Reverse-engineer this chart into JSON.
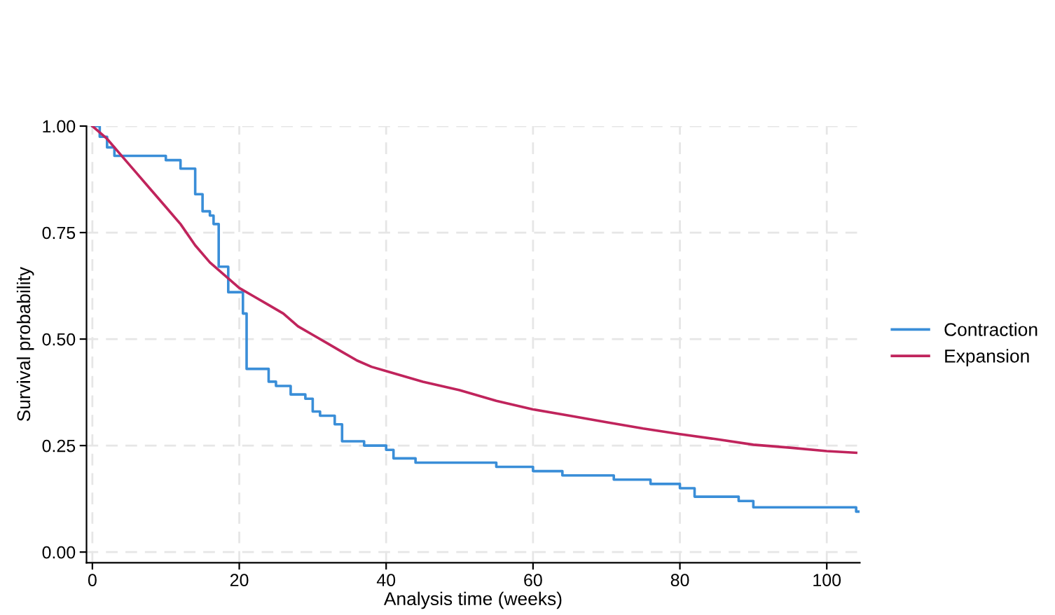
{
  "chart_data": {
    "type": "step",
    "xlabel": "Analysis time (weeks)",
    "ylabel": "Survival probability",
    "xlim": [
      -0.8,
      104.5
    ],
    "ylim": [
      -0.025,
      1.0
    ],
    "xticks": [
      0,
      20,
      40,
      60,
      80,
      100
    ],
    "yticks": [
      {
        "value": 0,
        "label": "0.00"
      },
      {
        "value": 0.25,
        "label": "0.25"
      },
      {
        "value": 0.5,
        "label": "0.50"
      },
      {
        "value": 0.75,
        "label": "0.75"
      },
      {
        "value": 1,
        "label": "1.00"
      }
    ],
    "grid": true,
    "legend": "right",
    "series": [
      {
        "name": "Contraction",
        "color": "#3a8ed8",
        "x": [
          0,
          1,
          2,
          3,
          5,
          10,
          12,
          14,
          15,
          16,
          16.5,
          17.2,
          18.5,
          20.5,
          21,
          24,
          25,
          27,
          29,
          30,
          31,
          33,
          34,
          37,
          40,
          41,
          44,
          55,
          60,
          64,
          71,
          76,
          80,
          82,
          88,
          90,
          104,
          104.3
        ],
        "values": [
          1.0,
          0.975,
          0.95,
          0.93,
          0.93,
          0.92,
          0.9,
          0.84,
          0.8,
          0.79,
          0.77,
          0.67,
          0.61,
          0.56,
          0.43,
          0.4,
          0.39,
          0.37,
          0.36,
          0.33,
          0.32,
          0.3,
          0.26,
          0.25,
          0.24,
          0.22,
          0.21,
          0.2,
          0.19,
          0.18,
          0.17,
          0.16,
          0.15,
          0.13,
          0.12,
          0.105,
          0.095,
          0.095
        ]
      },
      {
        "name": "Expansion",
        "color": "#c0245c",
        "type": "line",
        "x": [
          0,
          2,
          4,
          6,
          8,
          10,
          12,
          14,
          16,
          18,
          20,
          22,
          24,
          26,
          28,
          30,
          32,
          34,
          36,
          38,
          40,
          45,
          50,
          55,
          60,
          65,
          70,
          75,
          80,
          85,
          90,
          95,
          100,
          104
        ],
        "values": [
          1.0,
          0.97,
          0.93,
          0.89,
          0.85,
          0.81,
          0.77,
          0.72,
          0.68,
          0.65,
          0.62,
          0.6,
          0.58,
          0.56,
          0.53,
          0.51,
          0.49,
          0.47,
          0.45,
          0.435,
          0.425,
          0.4,
          0.38,
          0.355,
          0.335,
          0.32,
          0.305,
          0.29,
          0.277,
          0.265,
          0.252,
          0.245,
          0.237,
          0.233
        ]
      }
    ]
  }
}
